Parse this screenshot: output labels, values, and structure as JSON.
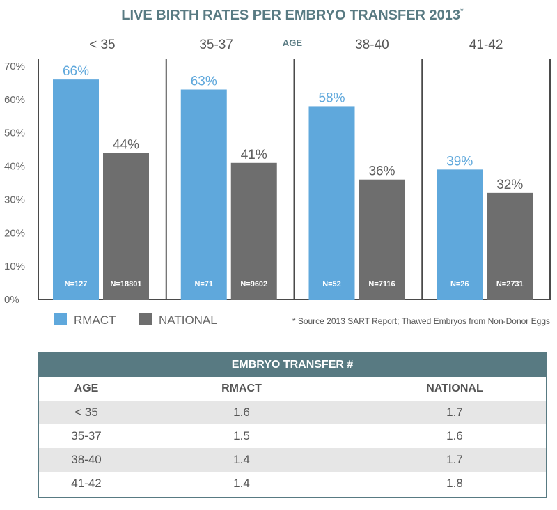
{
  "chart_data": {
    "type": "bar",
    "title": "LIVE BIRTH RATES PER EMBRYO TRANSFER 2013",
    "title_superscript": "*",
    "group_axis_label": "AGE",
    "categories": [
      "< 35",
      "35-37",
      "38-40",
      "41-42"
    ],
    "series": [
      {
        "name": "RMACT",
        "values": [
          66,
          63,
          58,
          39
        ],
        "value_labels": [
          "66%",
          "63%",
          "58%",
          "39%"
        ],
        "n_labels": [
          "N=127",
          "N=71",
          "N=52",
          "N=26"
        ],
        "color": "#5fa8dc"
      },
      {
        "name": "NATIONAL",
        "values": [
          44,
          41,
          36,
          32
        ],
        "value_labels": [
          "44%",
          "41%",
          "36%",
          "32%"
        ],
        "n_labels": [
          "N=18801",
          "N=9602",
          "N=7116",
          "N=2731"
        ],
        "color": "#6e6e6e"
      }
    ],
    "ylim": [
      0,
      70
    ],
    "yticks": [
      0,
      10,
      20,
      30,
      40,
      50,
      60,
      70
    ],
    "ytick_labels": [
      "0%",
      "10%",
      "20%",
      "30%",
      "40%",
      "50%",
      "60%",
      "70%"
    ],
    "legend_position": "bottom-left",
    "footnote": "* Source 2013 SART Report; Thawed Embryos from Non-Donor Eggs"
  },
  "table": {
    "title": "EMBRYO TRANSFER #",
    "headers": [
      "AGE",
      "RMACT",
      "NATIONAL"
    ],
    "rows": [
      [
        "< 35",
        "1.6",
        "1.7"
      ],
      [
        "35-37",
        "1.5",
        "1.6"
      ],
      [
        "38-40",
        "1.4",
        "1.7"
      ],
      [
        "41-42",
        "1.4",
        "1.8"
      ]
    ]
  }
}
